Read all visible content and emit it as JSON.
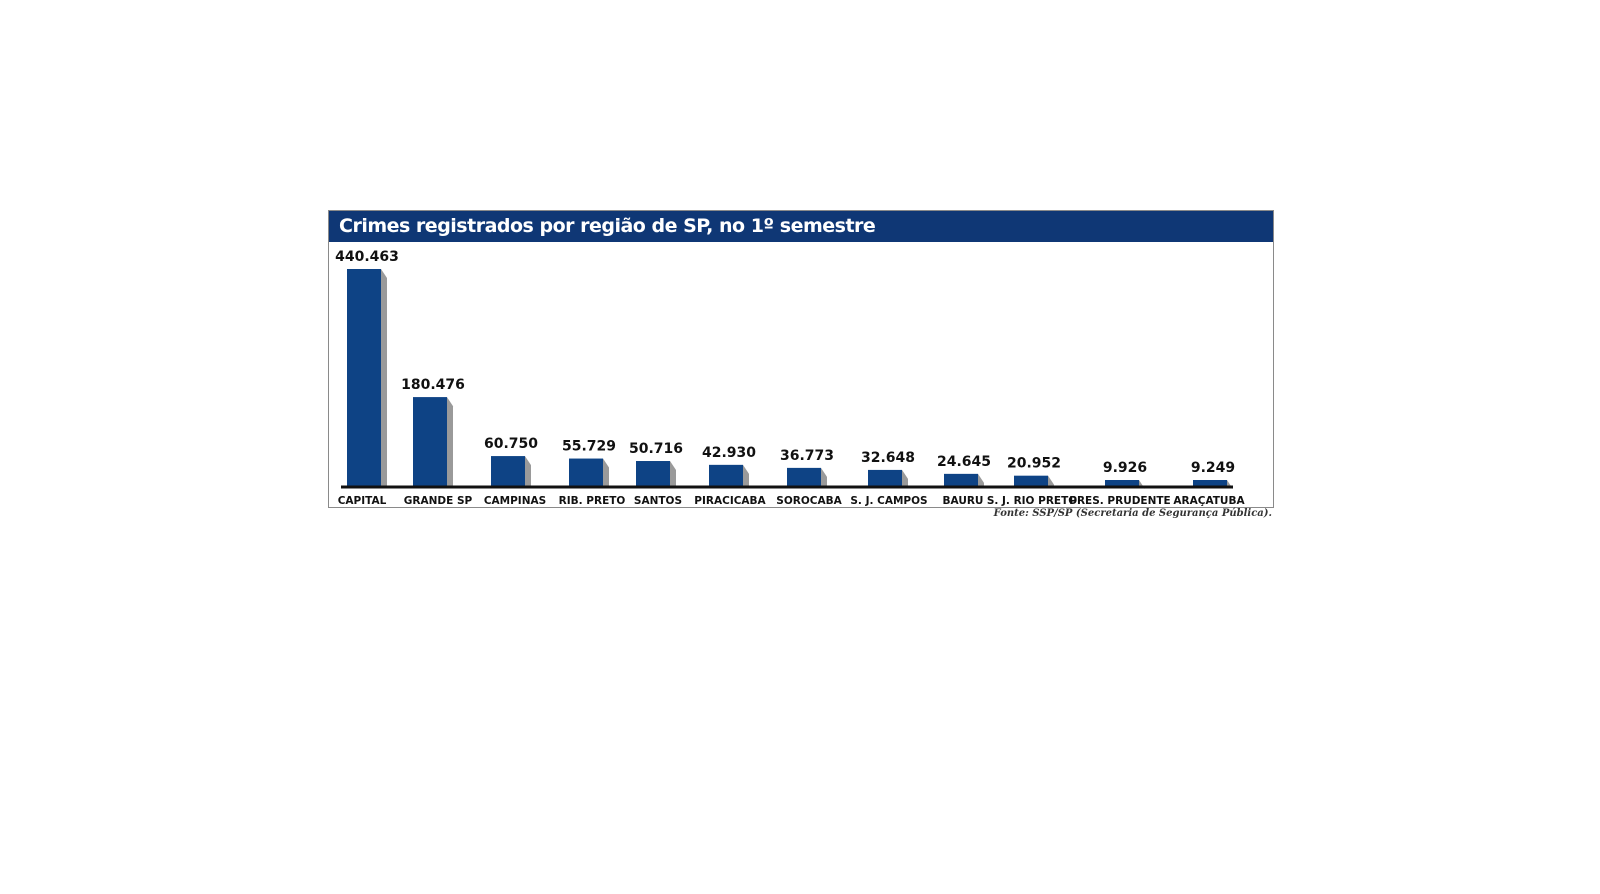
{
  "chart_data": {
    "type": "bar",
    "title": "Crimes registrados por região de SP, no 1º semestre",
    "categories": [
      "CAPITAL",
      "GRANDE SP",
      "CAMPINAS",
      "RIB. PRETO",
      "SANTOS",
      "PIRACICABA",
      "SOROCABA",
      "S. J. CAMPOS",
      "BAURU",
      "S. J. RIO PRETO",
      "PRES. PRUDENTE",
      "ARAÇATUBA"
    ],
    "values": [
      440463,
      180476,
      60750,
      55729,
      50716,
      42930,
      36773,
      32648,
      24645,
      20952,
      9926,
      9249
    ],
    "value_labels": [
      "440.463",
      "180.476",
      "60.750",
      "55.729",
      "50.716",
      "42.930",
      "36.773",
      "32.648",
      "24.645",
      "20.952",
      "9.926",
      "9.249"
    ],
    "source": "Fonte: SSP/SP (Secretaria de Segurança Pública).",
    "colors": {
      "header": "#0f3775",
      "bar": "#0e4385",
      "bar_shadow": "#9a9a9a",
      "baseline": "#111111"
    }
  }
}
